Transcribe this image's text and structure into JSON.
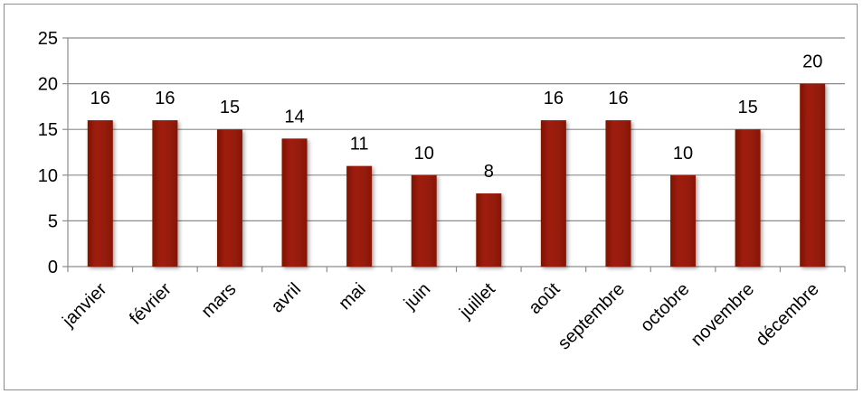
{
  "chart_data": {
    "type": "bar",
    "title": "",
    "xlabel": "",
    "ylabel": "",
    "categories": [
      "janvier",
      "février",
      "mars",
      "avril",
      "mai",
      "juin",
      "juillet",
      "août",
      "septembre",
      "octobre",
      "novembre",
      "décembre"
    ],
    "values": [
      16,
      16,
      15,
      14,
      11,
      10,
      8,
      16,
      16,
      10,
      15,
      20
    ],
    "ylim": [
      0,
      25
    ],
    "yticks": [
      0,
      5,
      10,
      15,
      20,
      25
    ],
    "grid": true,
    "legend": "none",
    "data_labels": true,
    "colors": {
      "bar": "#9c1b08",
      "grid": "#8c8c8c",
      "text": "#000000"
    }
  }
}
